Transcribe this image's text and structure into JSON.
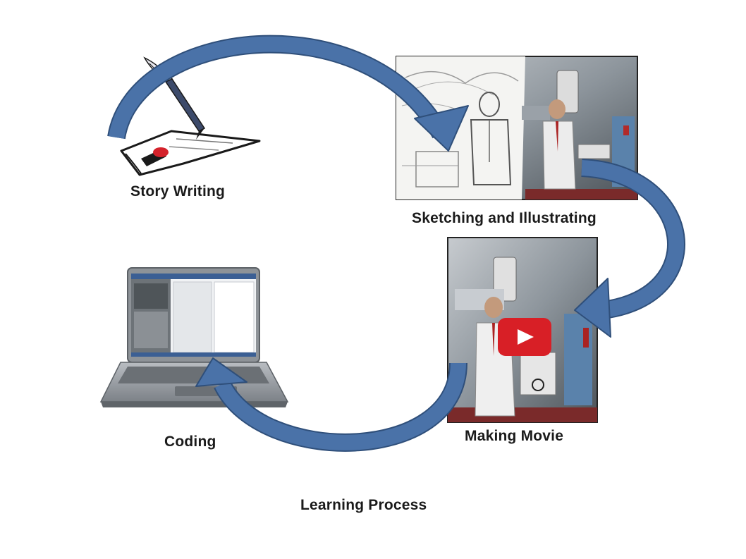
{
  "stages": {
    "story_writing": "Story Writing",
    "sketching": "Sketching and Illustrating",
    "making_movie": "Making Movie",
    "coding": "Coding"
  },
  "title": "Learning Process",
  "colors": {
    "arrow_fill": "#4a72a8",
    "arrow_stroke": "#2f4f7a",
    "play_button": "#d81f26",
    "laptop_body": "#8f9499",
    "pen_ink": "#4a4a6a"
  },
  "icons": {
    "story": "quill-pen-paper-icon",
    "sketch": "storyboard-sketch-image",
    "movie": "video-play-icon",
    "coding": "laptop-icon"
  }
}
